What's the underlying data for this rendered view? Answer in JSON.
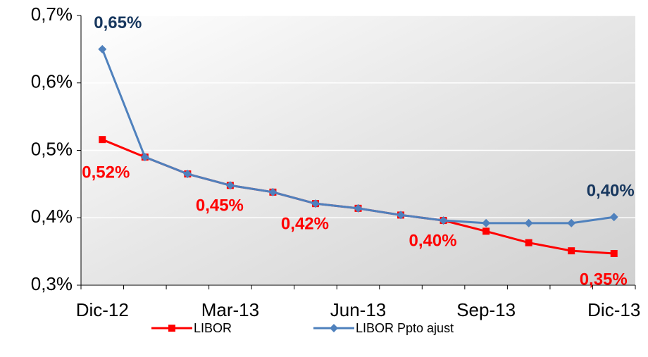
{
  "chart_data": {
    "type": "line",
    "categories": [
      "Dic-12",
      null,
      null,
      "Mar-13",
      null,
      null,
      "Jun-13",
      null,
      null,
      "Sep-13",
      null,
      null,
      "Dic-13"
    ],
    "series": [
      {
        "name": "LIBOR",
        "color": "#ff0000",
        "marker": "square",
        "label_color": "#ff0000",
        "values": [
          0.516,
          0.49,
          0.465,
          0.448,
          0.438,
          0.421,
          0.414,
          0.404,
          0.396,
          0.38,
          0.363,
          0.351,
          0.347
        ],
        "value_labels": [
          "0,52%",
          null,
          null,
          "0,45%",
          null,
          "0,42%",
          null,
          null,
          "0,40%",
          null,
          null,
          null,
          "0,35%"
        ]
      },
      {
        "name": "LIBOR Ppto ajust",
        "color": "#4f81bd",
        "marker": "diamond",
        "label_color": "#17375e",
        "values": [
          0.65,
          0.49,
          0.465,
          0.448,
          0.438,
          0.421,
          0.414,
          0.404,
          0.396,
          0.392,
          0.392,
          0.392,
          0.401
        ],
        "value_labels": [
          "0,65%",
          null,
          null,
          null,
          null,
          null,
          null,
          null,
          null,
          null,
          null,
          null,
          "0,40%"
        ]
      }
    ],
    "ylim": [
      0.3,
      0.7
    ],
    "yticks": [
      {
        "value": 0.3,
        "label": "0,3%"
      },
      {
        "value": 0.4,
        "label": "0,4%"
      },
      {
        "value": 0.5,
        "label": "0,5%"
      },
      {
        "value": 0.6,
        "label": "0,6%"
      },
      {
        "value": 0.7,
        "label": "0,7%"
      }
    ],
    "grid": true,
    "legend": "bottom"
  }
}
